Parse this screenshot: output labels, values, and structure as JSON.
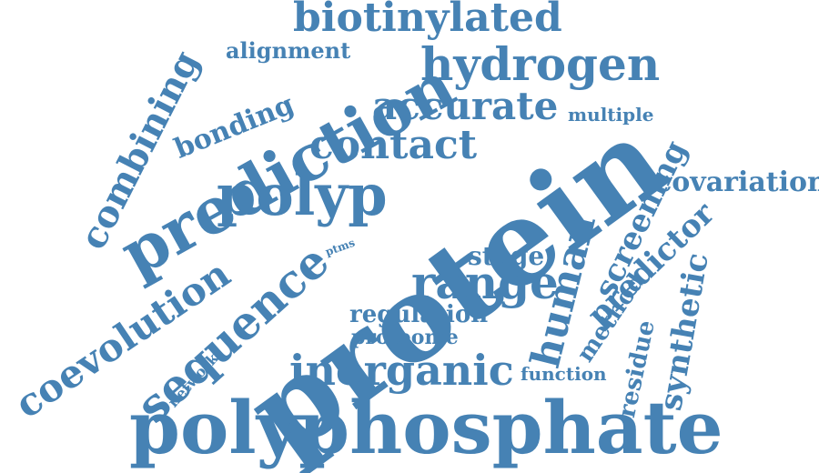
{
  "cloud": {
    "color": "#4682b4",
    "words": {
      "protein": "protein",
      "polyphosphate": "polyphosphate",
      "prediction": "prediction",
      "biotinylated": "biotinylated",
      "hydrogen": "hydrogen",
      "polyp": "polyp",
      "sequence": "sequence",
      "human": "human",
      "inorganic": "inorganic",
      "range": "range",
      "coevolution": "coevolution",
      "combining": "combining",
      "accurate": "accurate",
      "contact": "contact",
      "screening": "screening",
      "predictor": "predictor",
      "covariation": "covariation",
      "synthetic": "synthetic",
      "residue": "residue",
      "method": "method",
      "regulation": "regulation",
      "proteome": "proteome",
      "stage": "stage",
      "bonding": "bonding",
      "alignment": "alignment",
      "multiple": "multiple",
      "function": "function",
      "network": "network",
      "ptms": "ptms"
    }
  }
}
